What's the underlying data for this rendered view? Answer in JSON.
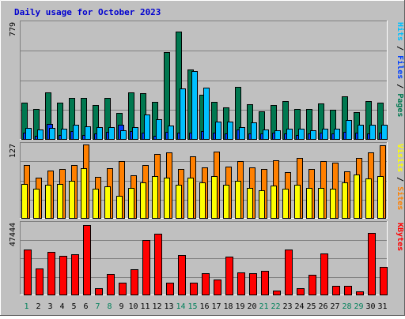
{
  "title": "Daily usage for October 2023",
  "colors": {
    "background": "#C0C0C0",
    "title": "#0000D0",
    "hits": "#00C0FF",
    "files": "#0040FF",
    "pages": "#007850",
    "visits": "#FFFF00",
    "sites": "#FF8000",
    "kbytes": "#FF0000"
  },
  "chart_data": [
    {
      "type": "bar",
      "panel": "top",
      "ymax_label": "779",
      "ymax": 779,
      "legend": [
        "Pages",
        "Files",
        "Hits"
      ],
      "categories": [
        "1",
        "2",
        "3",
        "4",
        "5",
        "6",
        "7",
        "8",
        "9",
        "10",
        "11",
        "12",
        "13",
        "14",
        "15",
        "16",
        "17",
        "18",
        "19",
        "20",
        "21",
        "22",
        "23",
        "24",
        "25",
        "26",
        "27",
        "28",
        "29",
        "30",
        "31"
      ],
      "series": [
        {
          "name": "Pages",
          "values": [
            242,
            201,
            314,
            245,
            274,
            274,
            228,
            274,
            173,
            314,
            309,
            250,
            583,
            721,
            467,
            297,
            251,
            213,
            348,
            233,
            188,
            228,
            254,
            201,
            201,
            238,
            196,
            287,
            178,
            255,
            242
          ]
        },
        {
          "name": "Files",
          "values": [
            41,
            23,
            100,
            27,
            55,
            27,
            36,
            46,
            95,
            55,
            41,
            23,
            50,
            41,
            41,
            55,
            41,
            36,
            64,
            36,
            36,
            41,
            36,
            27,
            36,
            41,
            36,
            46,
            41,
            36,
            41
          ]
        },
        {
          "name": "Hits",
          "values": [
            75,
            61,
            75,
            70,
            96,
            85,
            78,
            78,
            59,
            78,
            164,
            132,
            89,
            337,
            457,
            342,
            114,
            114,
            80,
            110,
            64,
            56,
            70,
            70,
            56,
            70,
            70,
            127,
            94,
            96,
            98
          ]
        }
      ],
      "day_labels_weekend": [
        "1",
        "7",
        "8",
        "14",
        "15",
        "21",
        "22",
        "28",
        "29"
      ]
    },
    {
      "type": "bar",
      "panel": "middle",
      "ymax_label": "127",
      "ymax": 127,
      "legend": [
        "Sites",
        "Visits"
      ],
      "series": [
        {
          "name": "Sites",
          "values": [
            92,
            70,
            82,
            84,
            91,
            127,
            71,
            86,
            99,
            74,
            91,
            110,
            113,
            85,
            107,
            87,
            115,
            89,
            98,
            88,
            84,
            100,
            79,
            104,
            85,
            99,
            95,
            81,
            104,
            114,
            125
          ]
        },
        {
          "name": "Visits",
          "values": [
            59,
            50,
            57,
            59,
            64,
            86,
            50,
            54,
            38,
            52,
            61,
            72,
            70,
            58,
            70,
            62,
            73,
            58,
            64,
            52,
            48,
            56,
            51,
            58,
            52,
            52,
            51,
            62,
            75,
            68,
            73
          ]
        }
      ]
    },
    {
      "type": "bar",
      "panel": "bottom",
      "ymax_label": "47444",
      "ymax": 47444,
      "legend": [
        "KBytes"
      ],
      "series": [
        {
          "name": "KBytes",
          "values": [
            30200,
            17300,
            28700,
            26000,
            27100,
            46400,
            4000,
            13600,
            7900,
            16800,
            36300,
            40800,
            8100,
            26200,
            8100,
            14100,
            10200,
            25500,
            15000,
            14100,
            15600,
            2800,
            30200,
            4100,
            13100,
            27400,
            5800,
            5800,
            1900,
            41000,
            18400
          ]
        }
      ]
    }
  ]
}
